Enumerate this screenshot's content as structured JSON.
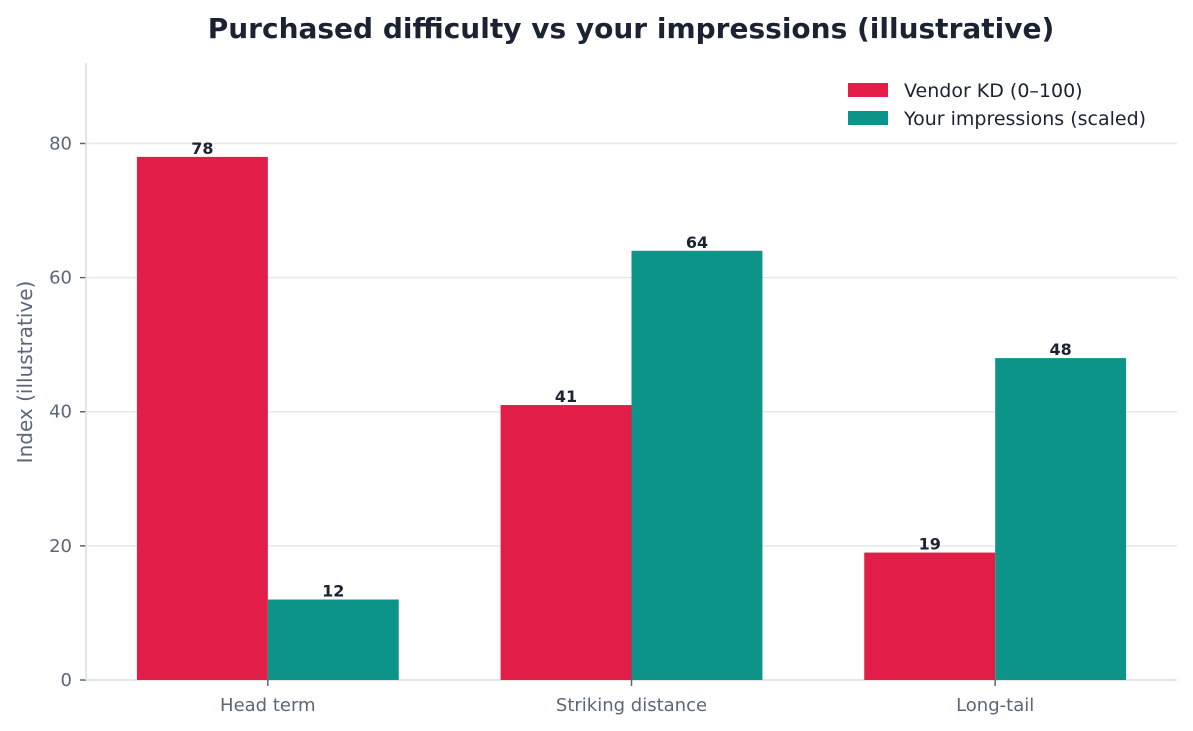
{
  "chart_data": {
    "type": "bar",
    "title": "Purchased difficulty vs your impressions (illustrative)",
    "xlabel": "",
    "ylabel": "Index (illustrative)",
    "categories": [
      "Head term",
      "Striking distance",
      "Long-tail"
    ],
    "series": [
      {
        "name": "Vendor KD (0–100)",
        "values": [
          78,
          41,
          19
        ],
        "color": "#e11d48"
      },
      {
        "name": "Your impressions (scaled)",
        "values": [
          12,
          64,
          48
        ],
        "color": "#0d9488"
      }
    ],
    "ylim": [
      0,
      92
    ],
    "yticks": [
      0,
      20,
      40,
      60,
      80
    ],
    "grid": true,
    "legend_position": "top-right",
    "data_labels": true
  }
}
